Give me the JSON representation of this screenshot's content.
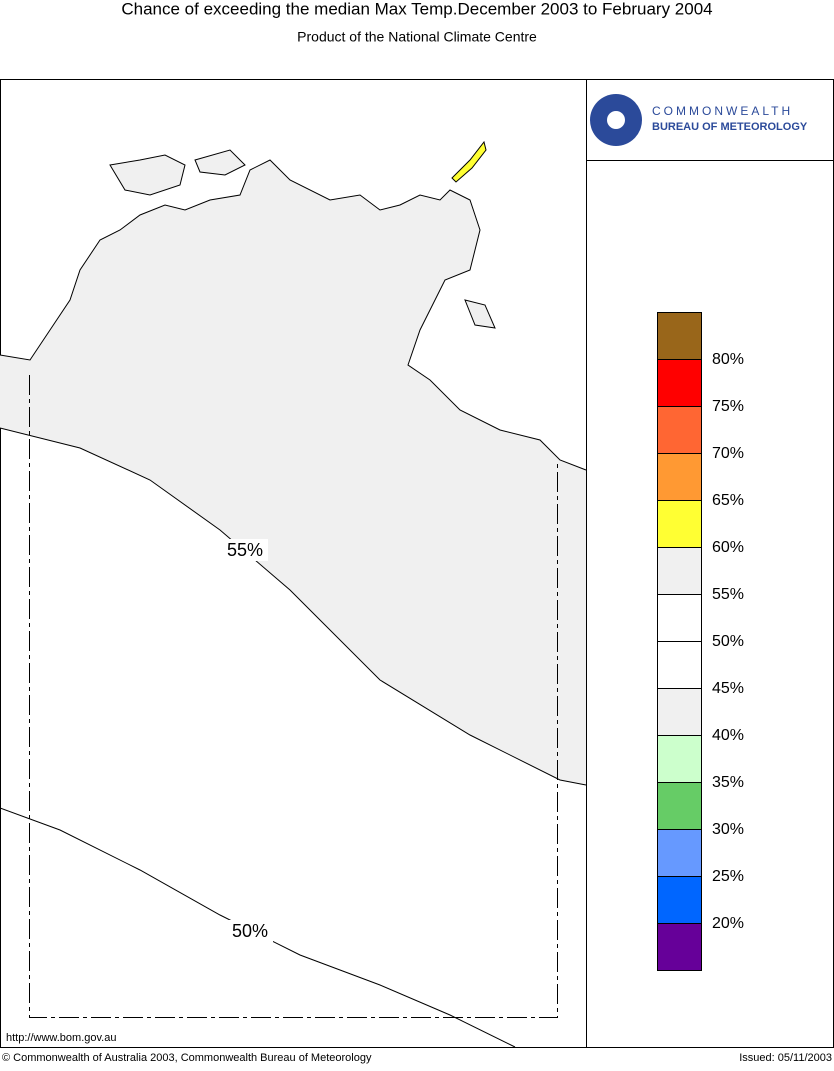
{
  "header": {
    "title": "Chance of exceeding the median Max Temp.December 2003 to February 2004",
    "subtitle": "Product of the National Climate Centre"
  },
  "logo": {
    "line1": "COMMONWEALTH",
    "line2": "BUREAU OF METEOROLOGY"
  },
  "map": {
    "contours": [
      {
        "label": "55%"
      },
      {
        "label": "50%"
      }
    ]
  },
  "legend": {
    "colors": [
      "#99661a",
      "#ff0000",
      "#ff6633",
      "#ff9933",
      "#ffff33",
      "#f0f0f0",
      "#ffffff",
      "#ffffff",
      "#f0f0f0",
      "#ccffcc",
      "#66cc66",
      "#6699ff",
      "#0066ff",
      "#660099"
    ],
    "labels": [
      "80%",
      "75%",
      "70%",
      "65%",
      "60%",
      "55%",
      "50%",
      "45%",
      "40%",
      "35%",
      "30%",
      "25%",
      "20%"
    ]
  },
  "footer": {
    "url": "http://www.bom.gov.au",
    "copyright": "© Commonwealth of Australia 2003, Commonwealth Bureau of Meteorology",
    "issued": "Issued: 05/11/2003"
  }
}
